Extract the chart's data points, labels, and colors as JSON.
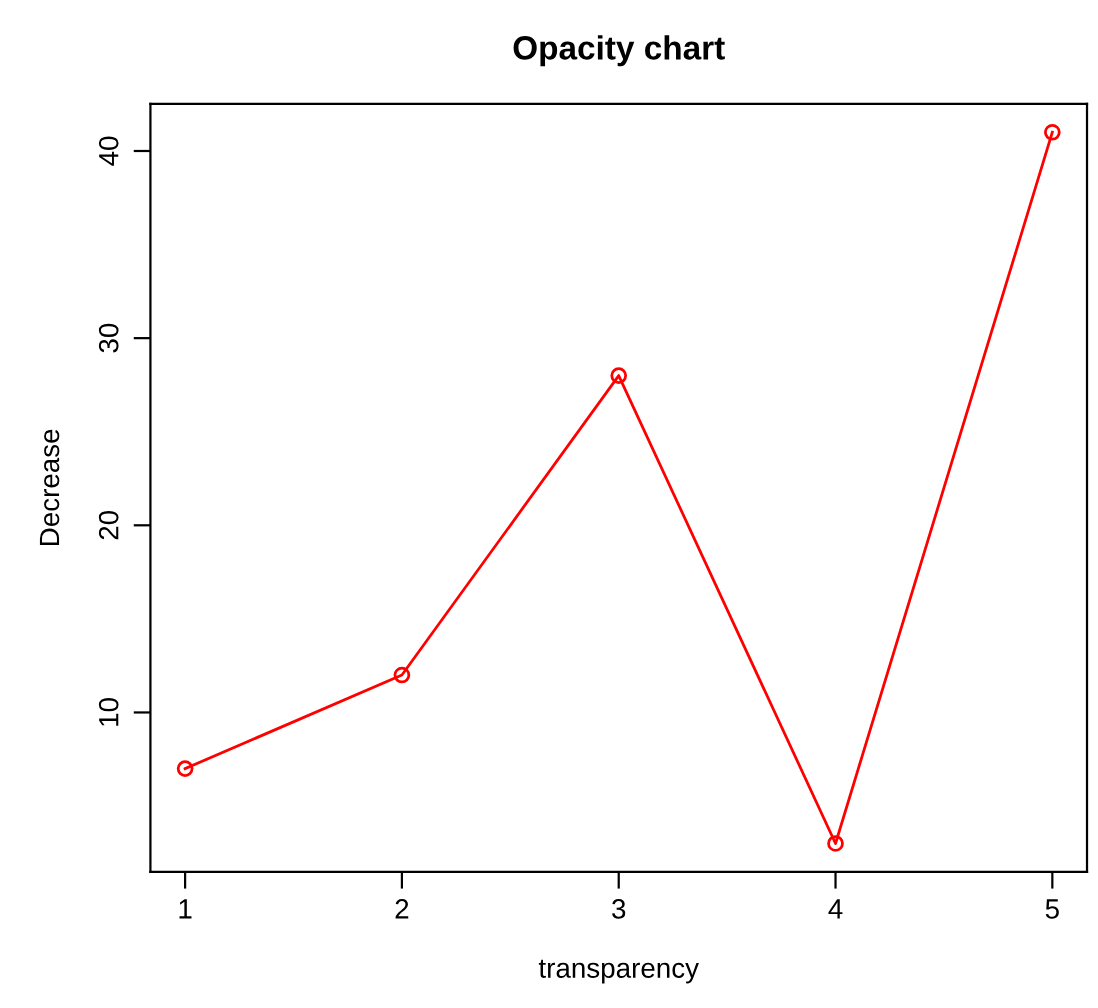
{
  "chart_data": {
    "type": "line",
    "title": "Opacity chart",
    "xlabel": "transparency",
    "ylabel": "Decrease",
    "x": [
      1,
      2,
      3,
      4,
      5
    ],
    "series": [
      {
        "color": "#ff0000",
        "values": [
          7,
          12,
          28,
          3,
          41
        ]
      }
    ],
    "xlim": [
      0.84,
      5.16
    ],
    "ylim": [
      1.48,
      42.52
    ],
    "xticks": [
      1,
      2,
      3,
      4,
      5
    ],
    "yticks": [
      10,
      20,
      30,
      40
    ],
    "marker": "circle",
    "line_style": "solid",
    "grid": false,
    "legend": false
  }
}
